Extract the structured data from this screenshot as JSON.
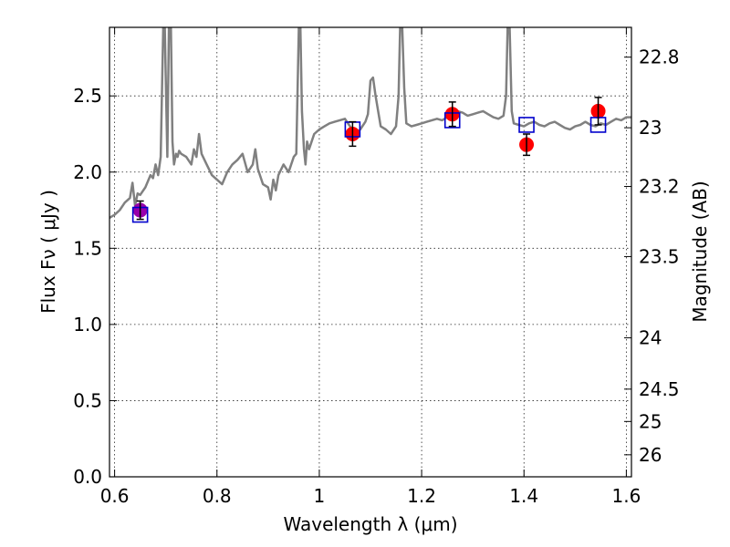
{
  "chart_data": {
    "type": "scatter",
    "xlabel": "Wavelength  λ (μm)",
    "ylabel": "Flux  Fν  ( μJy )",
    "y2label": "Magnitude (AB)",
    "xlim": [
      0.59,
      1.61
    ],
    "ylim": [
      0.0,
      2.95
    ],
    "x_ticks": [
      0.6,
      0.8,
      1.0,
      1.2,
      1.4,
      1.6
    ],
    "x_tick_labels": [
      "0.6",
      "0.8",
      "1",
      "1.2",
      "1.4",
      "1.6"
    ],
    "y_ticks": [
      0.0,
      0.5,
      1.0,
      1.5,
      2.0,
      2.5
    ],
    "y_tick_labels": [
      "0.0",
      "0.5",
      "1.0",
      "1.5",
      "2.0",
      "2.5"
    ],
    "y2_ticks": [
      22.8,
      23,
      23.2,
      23.5,
      24,
      24.5,
      25,
      26
    ],
    "y2_tick_labels": [
      "22.8",
      "23",
      "23.2",
      "23.5",
      "24",
      "24.5",
      "25",
      "26"
    ],
    "grid": true,
    "colors": {
      "spectrum": "#808080",
      "observed": "#ff0000",
      "model": "#0000cc",
      "first_point": "#9900aa"
    },
    "spectrum": {
      "x": [
        0.59,
        0.6,
        0.61,
        0.62,
        0.63,
        0.635,
        0.64,
        0.645,
        0.65,
        0.66,
        0.67,
        0.675,
        0.68,
        0.685,
        0.69,
        0.695,
        0.698,
        0.7,
        0.703,
        0.706,
        0.71,
        0.713,
        0.716,
        0.72,
        0.723,
        0.726,
        0.73,
        0.74,
        0.75,
        0.755,
        0.76,
        0.765,
        0.77,
        0.78,
        0.79,
        0.8,
        0.81,
        0.82,
        0.83,
        0.84,
        0.85,
        0.86,
        0.87,
        0.875,
        0.88,
        0.89,
        0.9,
        0.905,
        0.91,
        0.915,
        0.92,
        0.93,
        0.94,
        0.95,
        0.955,
        0.96,
        0.963,
        0.966,
        0.97,
        0.973,
        0.976,
        0.98,
        0.99,
        1.0,
        1.01,
        1.02,
        1.03,
        1.04,
        1.05,
        1.06,
        1.07,
        1.08,
        1.09,
        1.095,
        1.1,
        1.105,
        1.11,
        1.12,
        1.13,
        1.14,
        1.15,
        1.155,
        1.158,
        1.162,
        1.166,
        1.17,
        1.18,
        1.19,
        1.2,
        1.21,
        1.22,
        1.23,
        1.24,
        1.25,
        1.26,
        1.27,
        1.28,
        1.29,
        1.3,
        1.31,
        1.32,
        1.33,
        1.34,
        1.35,
        1.36,
        1.365,
        1.368,
        1.372,
        1.376,
        1.38,
        1.39,
        1.4,
        1.41,
        1.42,
        1.43,
        1.44,
        1.45,
        1.46,
        1.47,
        1.48,
        1.49,
        1.5,
        1.51,
        1.52,
        1.53,
        1.54,
        1.55,
        1.56,
        1.57,
        1.58,
        1.59,
        1.6,
        1.61
      ],
      "y": [
        1.7,
        1.72,
        1.75,
        1.8,
        1.83,
        1.93,
        1.78,
        1.86,
        1.85,
        1.9,
        1.98,
        1.96,
        2.05,
        1.98,
        2.1,
        2.95,
        2.95,
        2.6,
        2.1,
        2.95,
        2.95,
        2.2,
        2.05,
        2.12,
        2.1,
        2.14,
        2.12,
        2.1,
        2.05,
        2.15,
        2.1,
        2.25,
        2.12,
        2.05,
        1.98,
        1.95,
        1.92,
        2.0,
        2.05,
        2.08,
        2.12,
        2.0,
        2.05,
        2.15,
        2.02,
        1.92,
        1.9,
        1.82,
        1.95,
        1.88,
        1.98,
        2.05,
        2.0,
        2.1,
        2.12,
        2.95,
        2.95,
        2.4,
        2.15,
        2.05,
        2.2,
        2.15,
        2.25,
        2.28,
        2.3,
        2.32,
        2.33,
        2.34,
        2.35,
        2.3,
        2.25,
        2.28,
        2.33,
        2.38,
        2.6,
        2.62,
        2.5,
        2.3,
        2.28,
        2.25,
        2.3,
        2.5,
        2.95,
        2.95,
        2.55,
        2.32,
        2.3,
        2.31,
        2.32,
        2.33,
        2.34,
        2.35,
        2.34,
        2.36,
        2.38,
        2.4,
        2.39,
        2.37,
        2.38,
        2.39,
        2.4,
        2.38,
        2.36,
        2.35,
        2.37,
        2.5,
        2.95,
        2.95,
        2.4,
        2.32,
        2.31,
        2.3,
        2.32,
        2.33,
        2.31,
        2.3,
        2.32,
        2.33,
        2.31,
        2.29,
        2.28,
        2.3,
        2.31,
        2.33,
        2.31,
        2.3,
        2.32,
        2.31,
        2.33,
        2.35,
        2.34,
        2.36,
        2.36
      ]
    },
    "observed": [
      {
        "x": 0.65,
        "y": 1.75,
        "err": 0.06
      },
      {
        "x": 1.065,
        "y": 2.25,
        "err": 0.08
      },
      {
        "x": 1.26,
        "y": 2.38,
        "err": 0.08
      },
      {
        "x": 1.405,
        "y": 2.18,
        "err": 0.07
      },
      {
        "x": 1.545,
        "y": 2.4,
        "err": 0.09
      }
    ],
    "model": [
      {
        "x": 0.65,
        "y": 1.72
      },
      {
        "x": 1.065,
        "y": 2.28
      },
      {
        "x": 1.26,
        "y": 2.34
      },
      {
        "x": 1.405,
        "y": 2.31
      },
      {
        "x": 1.545,
        "y": 2.31
      }
    ]
  }
}
